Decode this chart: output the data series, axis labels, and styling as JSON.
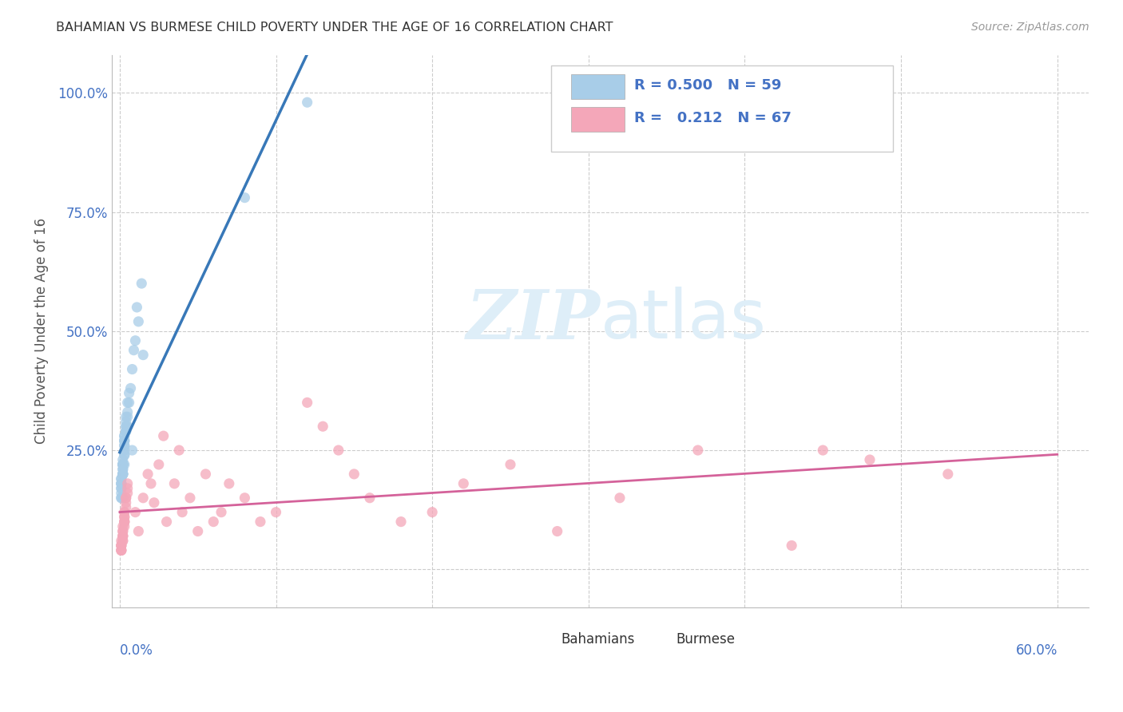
{
  "title": "BAHAMIAN VS BURMESE CHILD POVERTY UNDER THE AGE OF 16 CORRELATION CHART",
  "source": "Source: ZipAtlas.com",
  "ylabel": "Child Poverty Under the Age of 16",
  "ytick_labels": [
    "",
    "25.0%",
    "50.0%",
    "75.0%",
    "100.0%"
  ],
  "ytick_values": [
    0.0,
    0.25,
    0.5,
    0.75,
    1.0
  ],
  "xgrid_values": [
    0.0,
    0.1,
    0.2,
    0.3,
    0.4,
    0.5,
    0.6
  ],
  "xlim": [
    -0.005,
    0.62
  ],
  "ylim": [
    -0.08,
    1.08
  ],
  "r_bahamian": 0.5,
  "n_bahamian": 59,
  "r_burmese": 0.212,
  "n_burmese": 67,
  "blue_scatter_color": "#a8cde8",
  "pink_scatter_color": "#f4a7b9",
  "blue_line_color": "#3878b8",
  "pink_line_color": "#d4629a",
  "dashed_line_color": "#aaaaaa",
  "legend_label_bahamian": "Bahamians",
  "legend_label_burmese": "Burmese",
  "watermark_color": "#deeef8",
  "title_color": "#333333",
  "axis_label_color": "#4472c4",
  "ylabel_color": "#555555",
  "source_color": "#999999",
  "legend_text_color": "#4472c4",
  "bg_color": "#ffffff",
  "grid_color": "#cccccc",
  "bahamian_x": [
    0.002,
    0.003,
    0.001,
    0.005,
    0.008,
    0.003,
    0.002,
    0.004,
    0.006,
    0.007,
    0.001,
    0.002,
    0.003,
    0.002,
    0.001,
    0.004,
    0.003,
    0.005,
    0.006,
    0.002,
    0.001,
    0.003,
    0.002,
    0.004,
    0.001,
    0.002,
    0.003,
    0.002,
    0.001,
    0.004,
    0.003,
    0.005,
    0.002,
    0.003,
    0.001,
    0.002,
    0.004,
    0.003,
    0.002,
    0.005,
    0.001,
    0.003,
    0.002,
    0.004,
    0.001,
    0.002,
    0.003,
    0.002,
    0.001,
    0.004,
    0.015,
    0.012,
    0.01,
    0.014,
    0.011,
    0.008,
    0.009,
    0.12,
    0.08
  ],
  "bahamian_y": [
    0.2,
    0.22,
    0.18,
    0.3,
    0.25,
    0.28,
    0.15,
    0.32,
    0.35,
    0.38,
    0.19,
    0.23,
    0.27,
    0.21,
    0.17,
    0.29,
    0.24,
    0.33,
    0.37,
    0.2,
    0.16,
    0.26,
    0.22,
    0.31,
    0.18,
    0.22,
    0.28,
    0.2,
    0.15,
    0.3,
    0.25,
    0.35,
    0.22,
    0.27,
    0.19,
    0.21,
    0.29,
    0.24,
    0.2,
    0.32,
    0.17,
    0.26,
    0.22,
    0.3,
    0.18,
    0.22,
    0.27,
    0.2,
    0.15,
    0.29,
    0.45,
    0.52,
    0.48,
    0.6,
    0.55,
    0.42,
    0.46,
    0.98,
    0.78
  ],
  "burmese_x": [
    0.001,
    0.002,
    0.003,
    0.001,
    0.004,
    0.002,
    0.003,
    0.001,
    0.005,
    0.002,
    0.003,
    0.001,
    0.002,
    0.004,
    0.003,
    0.005,
    0.002,
    0.003,
    0.001,
    0.004,
    0.002,
    0.003,
    0.001,
    0.005,
    0.002,
    0.003,
    0.001,
    0.004,
    0.002,
    0.003,
    0.01,
    0.015,
    0.012,
    0.018,
    0.02,
    0.025,
    0.022,
    0.028,
    0.03,
    0.035,
    0.04,
    0.038,
    0.045,
    0.05,
    0.055,
    0.06,
    0.065,
    0.07,
    0.08,
    0.09,
    0.1,
    0.12,
    0.13,
    0.14,
    0.15,
    0.16,
    0.18,
    0.2,
    0.22,
    0.25,
    0.28,
    0.32,
    0.37,
    0.43,
    0.48,
    0.53,
    0.45
  ],
  "burmese_y": [
    0.05,
    0.08,
    0.12,
    0.06,
    0.15,
    0.07,
    0.1,
    0.04,
    0.18,
    0.09,
    0.11,
    0.05,
    0.07,
    0.14,
    0.09,
    0.16,
    0.06,
    0.12,
    0.04,
    0.13,
    0.08,
    0.11,
    0.05,
    0.17,
    0.07,
    0.1,
    0.04,
    0.15,
    0.06,
    0.1,
    0.12,
    0.15,
    0.08,
    0.2,
    0.18,
    0.22,
    0.14,
    0.28,
    0.1,
    0.18,
    0.12,
    0.25,
    0.15,
    0.08,
    0.2,
    0.1,
    0.12,
    0.18,
    0.15,
    0.1,
    0.12,
    0.35,
    0.3,
    0.25,
    0.2,
    0.15,
    0.1,
    0.12,
    0.18,
    0.22,
    0.08,
    0.15,
    0.25,
    0.05,
    0.23,
    0.2,
    0.25
  ]
}
